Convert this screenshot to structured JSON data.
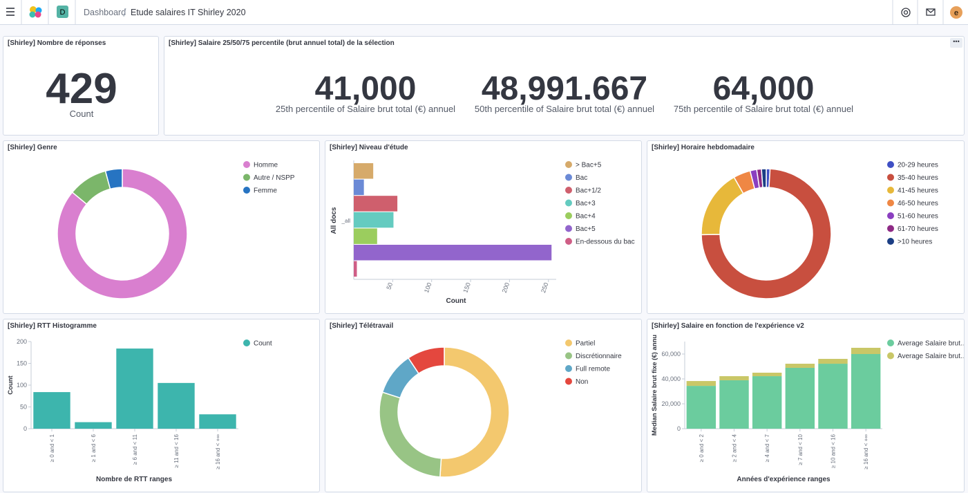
{
  "header": {
    "breadcrumbs": [
      "Dashboard",
      "Etude salaires IT Shirley 2020"
    ],
    "app_badge": "D",
    "user_initial": "e"
  },
  "metrics": [
    {
      "title": "[Shirley] Nombre de réponses",
      "value": 429,
      "label": "Count"
    },
    {
      "title": "[Shirley] Salaire 25/50/75 percentile (brut annuel total) de la sélection",
      "items": [
        {
          "value": "41,000",
          "label": "25th percentile of Salaire brut total (€) annuel"
        },
        {
          "value": "48,991.667",
          "label": "50th percentile of Salaire brut total (€) annuel"
        },
        {
          "value": "64,000",
          "label": "75th percentile of Salaire brut total (€) annuel"
        }
      ]
    }
  ],
  "chart_data": [
    {
      "type": "pie",
      "title": "[Shirley] Genre",
      "categories": [
        "Homme",
        "Autre / NSPP",
        "Femme"
      ],
      "values": [
        369,
        42,
        18
      ],
      "colors": [
        "#d97fcf",
        "#7bb66a",
        "#2774c2"
      ]
    },
    {
      "type": "bar",
      "orientation": "horizontal",
      "title": "[Shirley] Niveau d'étude",
      "categories": [
        "_all"
      ],
      "series": [
        {
          "name": "> Bac+5",
          "color": "#d6aa6a",
          "values": [
            25
          ]
        },
        {
          "name": "Bac",
          "color": "#6b8ad6",
          "values": [
            13
          ]
        },
        {
          "name": "Bac+1/2",
          "color": "#cf5f6d",
          "values": [
            56
          ]
        },
        {
          "name": "Bac+3",
          "color": "#64cbc0",
          "values": [
            51
          ]
        },
        {
          "name": "Bac+4",
          "color": "#9bcd5e",
          "values": [
            30
          ]
        },
        {
          "name": "Bac+5",
          "color": "#9265cc",
          "values": [
            254
          ]
        },
        {
          "name": "En-dessous du bac",
          "color": "#cf5e86",
          "values": [
            4
          ]
        }
      ],
      "xlabel": "Count",
      "ylabel": "All docs",
      "xlim": [
        0,
        260
      ],
      "xticks": [
        50,
        100,
        150,
        200,
        250
      ]
    },
    {
      "type": "pie",
      "title": "[Shirley] Horaire hebdomadaire",
      "categories": [
        "20-29 heures",
        "35-40 heures",
        "41-45 heures",
        "46-50 heures",
        "51-60 heures",
        "61-70 heures",
        ">10 heures"
      ],
      "values": [
        4,
        313,
        72,
        18,
        7,
        5,
        5
      ],
      "colors": [
        "#3f4fc4",
        "#c84f3f",
        "#e7b83a",
        "#ef8744",
        "#8b3fc0",
        "#8e2a85",
        "#1b3e84"
      ]
    },
    {
      "type": "bar",
      "title": "[Shirley] RTT Histogramme",
      "categories": [
        "≥ 0 and < 1",
        "≥ 1 and < 6",
        "≥ 6 and < 11",
        "≥ 11 and < 16",
        "≥ 16 and < +∞"
      ],
      "series": [
        {
          "name": "Count",
          "color": "#3db5ad",
          "values": [
            84,
            15,
            184,
            105,
            33
          ]
        }
      ],
      "xlabel": "Nombre de RTT ranges",
      "ylabel": "Count",
      "ylim": [
        0,
        200
      ],
      "yticks": [
        0,
        50,
        100,
        150,
        200
      ]
    },
    {
      "type": "pie",
      "title": "[Shirley] Télétravail",
      "categories": [
        "Partiel",
        "Discrétionnaire",
        "Full remote",
        "Non"
      ],
      "values": [
        219,
        124,
        46,
        40
      ],
      "colors": [
        "#f3c86e",
        "#98c485",
        "#5fa7c7",
        "#e4473e"
      ]
    },
    {
      "type": "bar",
      "stacked": true,
      "title": "[Shirley] Salaire en fonction de l'expérience v2",
      "categories": [
        "≥ 0 and < 2",
        "≥ 2 and < 4",
        "≥ 4 and < 7",
        "≥ 7 and < 10",
        "≥ 10 and < 16",
        "≥ 16 and < +∞"
      ],
      "series": [
        {
          "name": "Average Salaire brut…",
          "color": "#6bcc9e",
          "values": [
            34400,
            38900,
            42200,
            48900,
            52200,
            60000
          ]
        },
        {
          "name": "Average Salaire brut…",
          "color": "#c9c767",
          "values": [
            3900,
            3300,
            2800,
            3300,
            3900,
            5000
          ]
        }
      ],
      "xlabel": "Années d'expérience ranges",
      "ylabel": "Median Salaire brut fixe (€) annu",
      "ylim": [
        0,
        70000
      ],
      "yticks": [
        0,
        {
          "value": 20000,
          "label": "20,000"
        },
        {
          "value": 40000,
          "label": "40,000"
        },
        {
          "value": 60000,
          "label": "60,000"
        }
      ]
    }
  ]
}
